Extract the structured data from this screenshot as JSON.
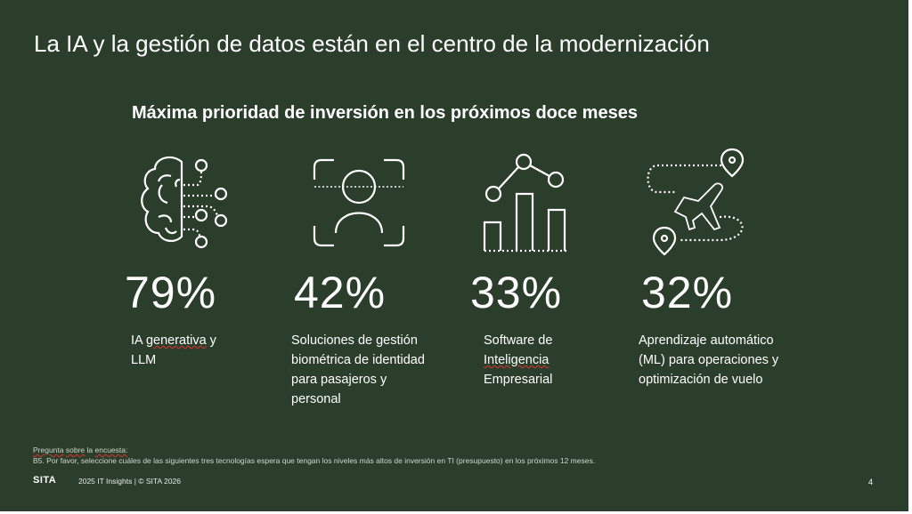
{
  "title": "La IA y la gestión de datos están en el centro de la modernización",
  "subtitle": "Máxima prioridad de inversión en los próximos doce meses",
  "items": [
    {
      "icon": "brain-network-icon",
      "value": "79%",
      "label_parts": [
        "IA ",
        "generativa",
        " y LLM"
      ]
    },
    {
      "icon": "face-scan-icon",
      "value": "42%",
      "label": "Soluciones de gestión biométrica de identidad para pasajeros y personal"
    },
    {
      "icon": "bar-chart-icon",
      "value": "33%",
      "label_parts": [
        "Software de ",
        "Inteligencia",
        " Empresarial"
      ]
    },
    {
      "icon": "flight-route-icon",
      "value": "32%",
      "label": "Aprendizaje automático (ML) para operaciones y optimización de vuelo"
    }
  ],
  "survey": {
    "heading_parts": [
      "Pregunta",
      " ",
      "sobre",
      " la ",
      "encuesta:"
    ],
    "question": "B5. Por favor, seleccione cuáles de las siguientes tres tecnologías espera que tengan los niveles más altos de inversión en TI (presupuesto) en los próximos 12 meses."
  },
  "footer": {
    "logo": "SITA",
    "text": "2025 IT Insights | © SITA 2026",
    "page": "4"
  },
  "colors": {
    "background": "#2b3e2b",
    "text": "#ffffff"
  }
}
